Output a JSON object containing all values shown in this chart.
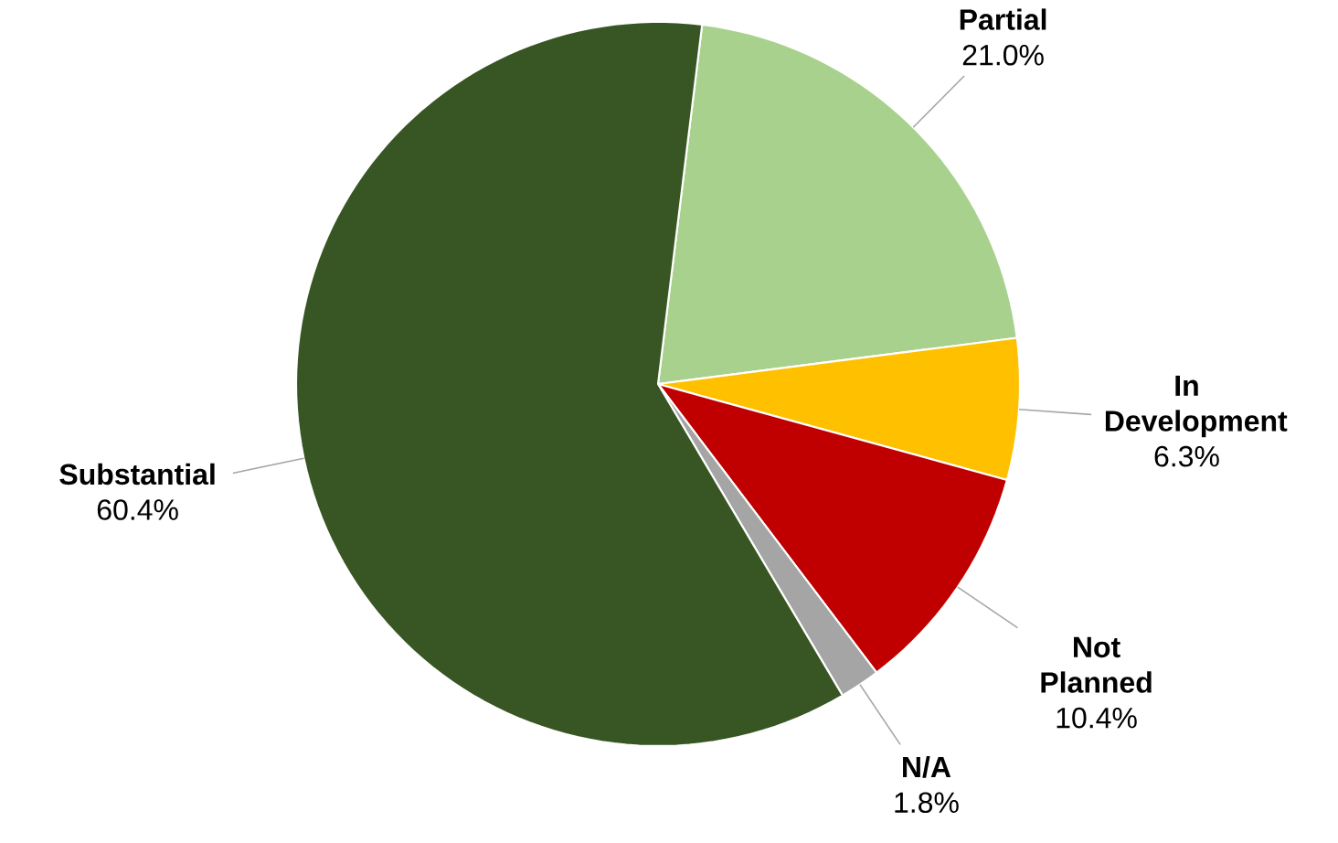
{
  "chart_data": {
    "type": "pie",
    "categories": [
      "Partial",
      "In Development",
      "Not Planned",
      "N/A",
      "Substantial"
    ],
    "values": [
      21.0,
      6.3,
      10.4,
      1.8,
      60.4
    ],
    "colors": [
      "#a9d18e",
      "#ffc000",
      "#c00000",
      "#a5a5a5",
      "#375623"
    ],
    "value_labels": [
      "21.0%",
      "6.3%",
      "10.4%",
      "1.8%",
      "60.4%"
    ]
  }
}
